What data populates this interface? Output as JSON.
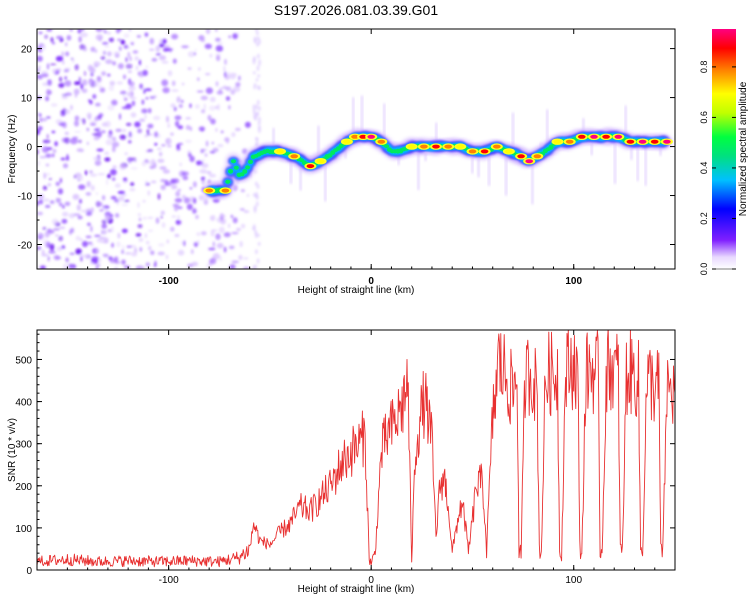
{
  "title": "S197.2026.081.03.39.G01",
  "chart_data": [
    {
      "type": "heatmap",
      "title": "S197.2026.081.03.39.G01",
      "xlabel": "Height of straight line (km)",
      "ylabel": "Frequency (Hz)",
      "xlim": [
        -165,
        150
      ],
      "ylim": [
        -25,
        24
      ],
      "x_ticks": [
        -100,
        0,
        100
      ],
      "x_tick_labels": [
        "-100",
        "0",
        "100"
      ],
      "y_ticks": [
        20,
        10,
        0,
        -10,
        -20
      ],
      "y_tick_labels": [
        "20",
        "10",
        "0",
        "-10",
        "-20"
      ],
      "noise_region_x": [
        -165,
        -60
      ],
      "ridge": {
        "x": [
          -80,
          -72,
          -68,
          -65,
          -62,
          -58,
          -52,
          -45,
          -38,
          -30,
          -25,
          -18,
          -12,
          -8,
          -4,
          0,
          5,
          10,
          14,
          20,
          26,
          32,
          38,
          44,
          50,
          56,
          62,
          68,
          74,
          78,
          82,
          86,
          92,
          98,
          104,
          110,
          116,
          122,
          128,
          134,
          140,
          146
        ],
        "frequency": [
          -9,
          -9,
          -3,
          -6,
          -5,
          -2,
          -1,
          -1,
          -2,
          -4,
          -3,
          -1,
          1,
          2,
          2,
          2,
          1,
          -1,
          -1,
          0,
          0,
          0,
          0,
          0,
          -1,
          -1,
          0,
          -1,
          -2,
          -3,
          -2,
          -1,
          1,
          1,
          2,
          2,
          2,
          2,
          1,
          1,
          1,
          1
        ],
        "amplitude": [
          0.7,
          0.7,
          0.4,
          0.5,
          0.5,
          0.4,
          0.5,
          0.6,
          0.7,
          0.8,
          0.6,
          0.5,
          0.6,
          0.7,
          0.8,
          0.9,
          0.7,
          0.5,
          0.5,
          0.6,
          0.7,
          0.8,
          0.7,
          0.6,
          0.7,
          0.8,
          0.7,
          0.6,
          0.8,
          0.9,
          0.7,
          0.5,
          0.6,
          0.7,
          0.8,
          0.9,
          0.8,
          0.9,
          0.8,
          0.9,
          0.8,
          0.9
        ]
      },
      "colorbar": {
        "label": "Normalized spectral amplitude",
        "range": [
          0.0,
          0.95
        ],
        "ticks": [
          0.0,
          0.2,
          0.4,
          0.6,
          0.8
        ],
        "tick_labels": [
          "0.0",
          "0.2",
          "0.4",
          "0.6",
          "0.8"
        ],
        "colors": [
          "#ffffff",
          "#8020ff",
          "#0000ff",
          "#00c0ff",
          "#00ff60",
          "#c0ff00",
          "#ffff00",
          "#ff8000",
          "#ff0000",
          "#ff0080"
        ]
      }
    },
    {
      "type": "line",
      "title": "",
      "xlabel": "Height of straight line (km)",
      "ylabel": "SNR (10 * v/v)",
      "xlim": [
        -165,
        150
      ],
      "ylim": [
        0,
        570
      ],
      "x_ticks": [
        -100,
        0,
        100
      ],
      "x_tick_labels": [
        "-100",
        "0",
        "100"
      ],
      "y_ticks": [
        0,
        100,
        200,
        300,
        400,
        500
      ],
      "y_tick_labels": [
        "0",
        "100",
        "200",
        "300",
        "400",
        "500"
      ],
      "color": "#e83030",
      "series": [
        {
          "name": "SNR",
          "x": [
            -165,
            -150,
            -135,
            -120,
            -105,
            -90,
            -75,
            -65,
            -60,
            -58,
            -55,
            -50,
            -45,
            -40,
            -35,
            -30,
            -25,
            -20,
            -15,
            -10,
            -6,
            -3,
            -1,
            0,
            2,
            5,
            8,
            12,
            16,
            18,
            20,
            22,
            24,
            26,
            28,
            30,
            32,
            34,
            36,
            38,
            40,
            42,
            44,
            46,
            48,
            52,
            55,
            57,
            60,
            62,
            63,
            64,
            66,
            68,
            70,
            72,
            73,
            74,
            76,
            78,
            80,
            82,
            83,
            84,
            86,
            88,
            90,
            92,
            93,
            94,
            96,
            98,
            100,
            102,
            103,
            104,
            106,
            108,
            110,
            112,
            113,
            114,
            116,
            118,
            120,
            122,
            123,
            124,
            126,
            128,
            130,
            132,
            133,
            134,
            136,
            138,
            140,
            142,
            143,
            144,
            146,
            150
          ],
          "values": [
            20,
            25,
            20,
            22,
            20,
            22,
            20,
            30,
            50,
            110,
            70,
            60,
            90,
            110,
            150,
            140,
            170,
            200,
            250,
            280,
            300,
            320,
            30,
            15,
            40,
            280,
            320,
            350,
            400,
            460,
            30,
            300,
            350,
            400,
            370,
            300,
            80,
            200,
            220,
            160,
            40,
            100,
            150,
            130,
            40,
            200,
            210,
            50,
            360,
            450,
            500,
            480,
            470,
            440,
            420,
            460,
            50,
            40,
            450,
            470,
            460,
            420,
            50,
            40,
            450,
            470,
            460,
            470,
            50,
            40,
            470,
            480,
            490,
            470,
            50,
            40,
            460,
            480,
            470,
            470,
            50,
            40,
            460,
            490,
            470,
            470,
            50,
            40,
            460,
            470,
            460,
            450,
            50,
            40,
            440,
            450,
            430,
            440,
            50,
            40,
            430,
            420
          ]
        }
      ]
    }
  ]
}
